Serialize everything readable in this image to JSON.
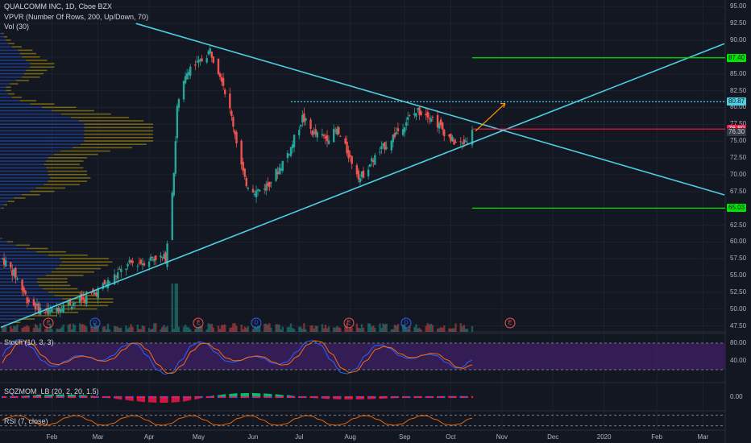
{
  "header": {
    "title": "QUALCOMM INC, 1D, Cboe BZX",
    "indicator_vpvr": "VPVR (Number Of Rows, 200, Up/Down, 70)",
    "indicator_vol": "Vol (30)"
  },
  "panes": {
    "stoch": "Stoch (10, 3, 3)",
    "sqzmom": "SQZMOM_LB (20, 2, 20, 1.5)",
    "rsi": "RSI (7, close)"
  },
  "colors": {
    "background": "#131722",
    "up": "#26a69a",
    "down": "#ef5350",
    "trendline": "#4dd0e1",
    "green_level": "#00e600",
    "red_level": "#ff1744",
    "stoch_bg": "#3b1e5e",
    "vpvr_up": "#2962ff",
    "vpvr_down": "#e6c200"
  },
  "price_axis": [
    "95.00",
    "92.50",
    "90.00",
    "87.50",
    "85.00",
    "82.50",
    "80.00",
    "77.50",
    "75.00",
    "72.50",
    "70.00",
    "67.50",
    "65.00",
    "62.50",
    "60.00",
    "57.50",
    "55.00",
    "52.50",
    "50.00",
    "47.50"
  ],
  "price_tags": [
    {
      "label": "87.40",
      "value": 87.4,
      "kind": "green"
    },
    {
      "label": "80.87",
      "value": 80.87,
      "kind": "cyan"
    },
    {
      "label": "76.80",
      "value": 76.8,
      "kind": "red"
    },
    {
      "label": "76.30",
      "value": 76.3,
      "kind": "dark"
    },
    {
      "label": "65.03",
      "value": 65.03,
      "kind": "green"
    }
  ],
  "stoch_axis": [
    "80.00",
    "40.00"
  ],
  "sqz_axis": [
    "0.00"
  ],
  "time_axis": [
    {
      "label": "Feb",
      "date": "2019-02-01"
    },
    {
      "label": "Mar",
      "date": "2019-03-01"
    },
    {
      "label": "Apr",
      "date": "2019-04-01"
    },
    {
      "label": "May",
      "date": "2019-05-01"
    },
    {
      "label": "Jun",
      "date": "2019-06-03"
    },
    {
      "label": "Jul",
      "date": "2019-07-01"
    },
    {
      "label": "Aug",
      "date": "2019-08-01"
    },
    {
      "label": "Sep",
      "date": "2019-09-03"
    },
    {
      "label": "Oct",
      "date": "2019-10-01"
    },
    {
      "label": "Nov",
      "date": "2019-11-01"
    },
    {
      "label": "Dec",
      "date": "2019-12-02"
    },
    {
      "label": "2020",
      "date": "2020-01-02"
    },
    {
      "label": "Feb",
      "date": "2020-02-03"
    },
    {
      "label": "Mar",
      "date": "2020-03-02"
    }
  ],
  "events": [
    {
      "label": "E",
      "date": "2019-01-30",
      "kind": "earnings"
    },
    {
      "label": "D",
      "date": "2019-02-27",
      "kind": "dividend"
    },
    {
      "label": "E",
      "date": "2019-05-01",
      "kind": "earnings"
    },
    {
      "label": "D",
      "date": "2019-06-05",
      "kind": "dividend"
    },
    {
      "label": "E",
      "date": "2019-07-31",
      "kind": "earnings"
    },
    {
      "label": "D",
      "date": "2019-09-04",
      "kind": "dividend"
    },
    {
      "label": "E",
      "date": "2019-11-06",
      "kind": "earnings"
    }
  ],
  "chart_data": {
    "type": "candlestick",
    "title": "QUALCOMM INC, 1D, Cboe BZX",
    "ylim": [
      46.5,
      96
    ],
    "price_points": [
      {
        "date": "2019-01-02",
        "close": 57.5
      },
      {
        "date": "2019-01-10",
        "close": 55.0
      },
      {
        "date": "2019-01-17",
        "close": 51.5
      },
      {
        "date": "2019-01-24",
        "close": 50.0
      },
      {
        "date": "2019-01-31",
        "close": 49.6
      },
      {
        "date": "2019-02-07",
        "close": 50.6
      },
      {
        "date": "2019-02-14",
        "close": 51.0
      },
      {
        "date": "2019-02-21",
        "close": 51.5
      },
      {
        "date": "2019-02-28",
        "close": 52.6
      },
      {
        "date": "2019-03-07",
        "close": 54.0
      },
      {
        "date": "2019-03-14",
        "close": 55.5
      },
      {
        "date": "2019-03-21",
        "close": 56.8
      },
      {
        "date": "2019-03-28",
        "close": 57.0
      },
      {
        "date": "2019-04-04",
        "close": 57.8
      },
      {
        "date": "2019-04-11",
        "close": 57.5
      },
      {
        "date": "2019-04-16",
        "close": 70.5
      },
      {
        "date": "2019-04-18",
        "close": 80.0
      },
      {
        "date": "2019-04-25",
        "close": 86.0
      },
      {
        "date": "2019-05-01",
        "close": 86.5
      },
      {
        "date": "2019-05-08",
        "close": 88.5
      },
      {
        "date": "2019-05-15",
        "close": 84.5
      },
      {
        "date": "2019-05-22",
        "close": 77.5
      },
      {
        "date": "2019-05-29",
        "close": 69.0
      },
      {
        "date": "2019-06-05",
        "close": 67.5
      },
      {
        "date": "2019-06-12",
        "close": 68.5
      },
      {
        "date": "2019-06-19",
        "close": 71.0
      },
      {
        "date": "2019-06-26",
        "close": 74.0
      },
      {
        "date": "2019-07-03",
        "close": 78.5
      },
      {
        "date": "2019-07-10",
        "close": 76.0
      },
      {
        "date": "2019-07-17",
        "close": 75.5
      },
      {
        "date": "2019-07-24",
        "close": 76.5
      },
      {
        "date": "2019-07-31",
        "close": 73.0
      },
      {
        "date": "2019-08-07",
        "close": 69.5
      },
      {
        "date": "2019-08-14",
        "close": 72.0
      },
      {
        "date": "2019-08-21",
        "close": 74.0
      },
      {
        "date": "2019-08-28",
        "close": 76.0
      },
      {
        "date": "2019-09-04",
        "close": 78.0
      },
      {
        "date": "2019-09-11",
        "close": 79.5
      },
      {
        "date": "2019-09-18",
        "close": 79.0
      },
      {
        "date": "2019-09-25",
        "close": 77.0
      },
      {
        "date": "2019-10-02",
        "close": 75.0
      },
      {
        "date": "2019-10-08",
        "close": 74.5
      },
      {
        "date": "2019-10-14",
        "close": 76.3
      }
    ],
    "trendlines": [
      {
        "name": "descending",
        "from": {
          "date": "2019-03-24",
          "value": 92.5
        },
        "to": {
          "date": "2020-03-15",
          "value": 67.0
        }
      },
      {
        "name": "ascending",
        "from": {
          "date": "2019-01-01",
          "value": 47.3
        },
        "to": {
          "date": "2020-03-15",
          "value": 89.5
        }
      }
    ],
    "levels": [
      {
        "value": 87.4,
        "kind": "green",
        "from": "2019-10-14"
      },
      {
        "value": 80.87,
        "kind": "cyan_dotted",
        "from": "2019-06-26"
      },
      {
        "value": 76.8,
        "kind": "red",
        "from": "2019-10-14"
      },
      {
        "value": 65.03,
        "kind": "green",
        "from": "2019-10-14"
      }
    ],
    "stoch_range": [
      20,
      80
    ],
    "sqz_range": [
      -8,
      8
    ],
    "rsi_range": [
      20,
      80
    ]
  }
}
